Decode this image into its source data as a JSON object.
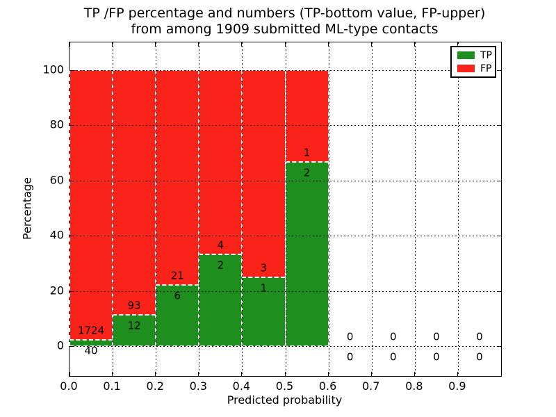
{
  "figure": {
    "title_line1": "TP /FP percentage and numbers (TP-bottom value, FP-upper)",
    "title_line2": "from among 1909 submitted ML-type contacts",
    "xlabel": "Predicted probability",
    "ylabel": "Percentage"
  },
  "legend": {
    "position": "upper right",
    "items": [
      {
        "label": "TP",
        "color": "#1e8e1e"
      },
      {
        "label": "FP",
        "color": "#fa2319"
      }
    ]
  },
  "chart_data": {
    "type": "bar",
    "stacked": true,
    "title": "TP /FP percentage and numbers (TP-bottom value, FP-upper) from among 1909 submitted ML-type contacts",
    "xlabel": "Predicted probability",
    "ylabel": "Percentage",
    "total_contacts": 1909,
    "xlim": [
      0.0,
      1.0
    ],
    "ylim": [
      -11,
      110
    ],
    "grid": {
      "visible": true,
      "style": "dotted",
      "color": "#000000"
    },
    "bar_edge": {
      "color": "#ffffff",
      "style": "dashed"
    },
    "x_tick_values": [
      0.0,
      0.1,
      0.2,
      0.3,
      0.4,
      0.5,
      0.6,
      0.7,
      0.8,
      0.9
    ],
    "x_tick_labels": [
      "0.0",
      "0.1",
      "0.2",
      "0.3",
      "0.4",
      "0.5",
      "0.6",
      "0.7",
      "0.8",
      "0.9"
    ],
    "y_tick_values": [
      0,
      20,
      40,
      60,
      80,
      100
    ],
    "y_tick_labels": [
      "0",
      "20",
      "40",
      "60",
      "80",
      "100"
    ],
    "series": [
      {
        "name": "TP",
        "color": "#1e8e1e"
      },
      {
        "name": "FP",
        "color": "#fa2319"
      }
    ],
    "bins": [
      {
        "x0": 0.0,
        "x1": 0.1,
        "tp": 40,
        "fp": 1724,
        "tp_pct": 2.27,
        "fp_pct": 97.73
      },
      {
        "x0": 0.1,
        "x1": 0.2,
        "tp": 12,
        "fp": 93,
        "tp_pct": 11.43,
        "fp_pct": 88.57
      },
      {
        "x0": 0.2,
        "x1": 0.3,
        "tp": 6,
        "fp": 21,
        "tp_pct": 22.22,
        "fp_pct": 77.78
      },
      {
        "x0": 0.3,
        "x1": 0.4,
        "tp": 2,
        "fp": 4,
        "tp_pct": 33.33,
        "fp_pct": 66.67
      },
      {
        "x0": 0.4,
        "x1": 0.5,
        "tp": 1,
        "fp": 3,
        "tp_pct": 25.0,
        "fp_pct": 75.0
      },
      {
        "x0": 0.5,
        "x1": 0.6,
        "tp": 2,
        "fp": 1,
        "tp_pct": 66.67,
        "fp_pct": 33.33
      },
      {
        "x0": 0.6,
        "x1": 0.7,
        "tp": 0,
        "fp": 0,
        "tp_pct": null,
        "fp_pct": null
      },
      {
        "x0": 0.7,
        "x1": 0.8,
        "tp": 0,
        "fp": 0,
        "tp_pct": null,
        "fp_pct": null
      },
      {
        "x0": 0.8,
        "x1": 0.9,
        "tp": 0,
        "fp": 0,
        "tp_pct": null,
        "fp_pct": null
      },
      {
        "x0": 0.9,
        "x1": 1.0,
        "tp": 0,
        "fp": 0,
        "tp_pct": null,
        "fp_pct": null
      }
    ]
  }
}
